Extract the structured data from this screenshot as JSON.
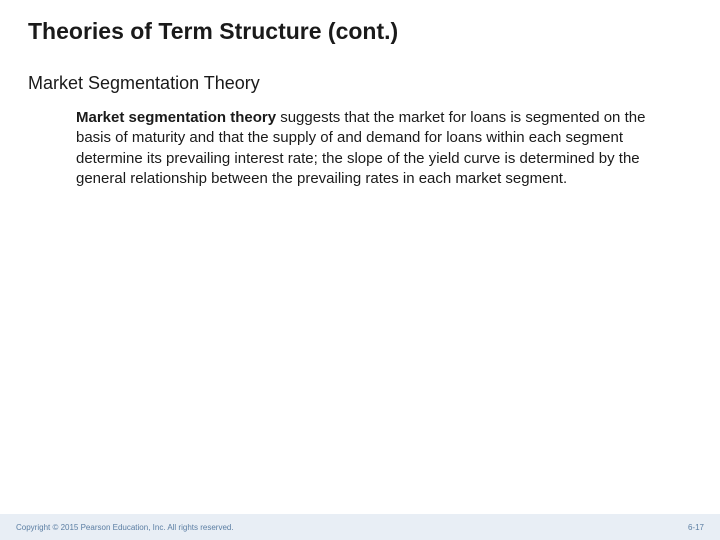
{
  "colors": {
    "background": "#ffffff",
    "text": "#1a1a1a",
    "footer_text": "#5b7ea3",
    "footer_bg": "#e8eef5"
  },
  "title": "Theories of Term Structure (cont.)",
  "subtitle": "Market Segmentation Theory",
  "body_lead": "Market segmentation theory",
  "body_rest": " suggests that the market for loans is segmented on the basis of maturity and that the supply of and demand for loans within each segment determine its prevailing interest rate; the slope of the yield curve is determined by the general relationship between the prevailing rates in each market segment.",
  "footer": {
    "copyright": "Copyright © 2015 Pearson Education, Inc. All rights reserved.",
    "page": "6-17"
  },
  "typography": {
    "title_fontsize": 23,
    "subtitle_fontsize": 18,
    "body_fontsize": 15,
    "footer_fontsize": 8,
    "font_family": "Verdana"
  }
}
